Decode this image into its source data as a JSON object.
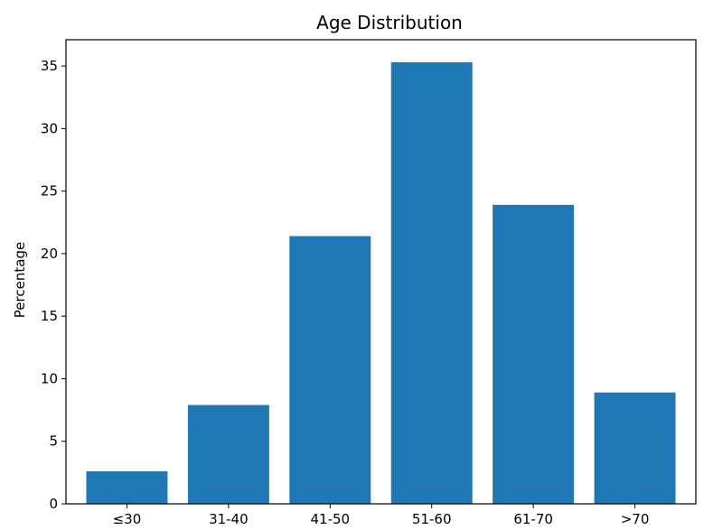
{
  "chart_data": {
    "type": "bar",
    "title": "Age Distribution",
    "xlabel": "",
    "ylabel": "Percentage",
    "categories": [
      "≤30",
      "31-40",
      "41-50",
      "51-60",
      "61-70",
      ">70"
    ],
    "values": [
      2.6,
      7.9,
      21.4,
      35.3,
      23.9,
      8.9
    ],
    "ylim": [
      0,
      37.1
    ],
    "yticks": [
      0,
      5,
      10,
      15,
      20,
      25,
      30,
      35
    ],
    "bar_color": "#1f77b4",
    "grid": false,
    "legend": "none"
  }
}
